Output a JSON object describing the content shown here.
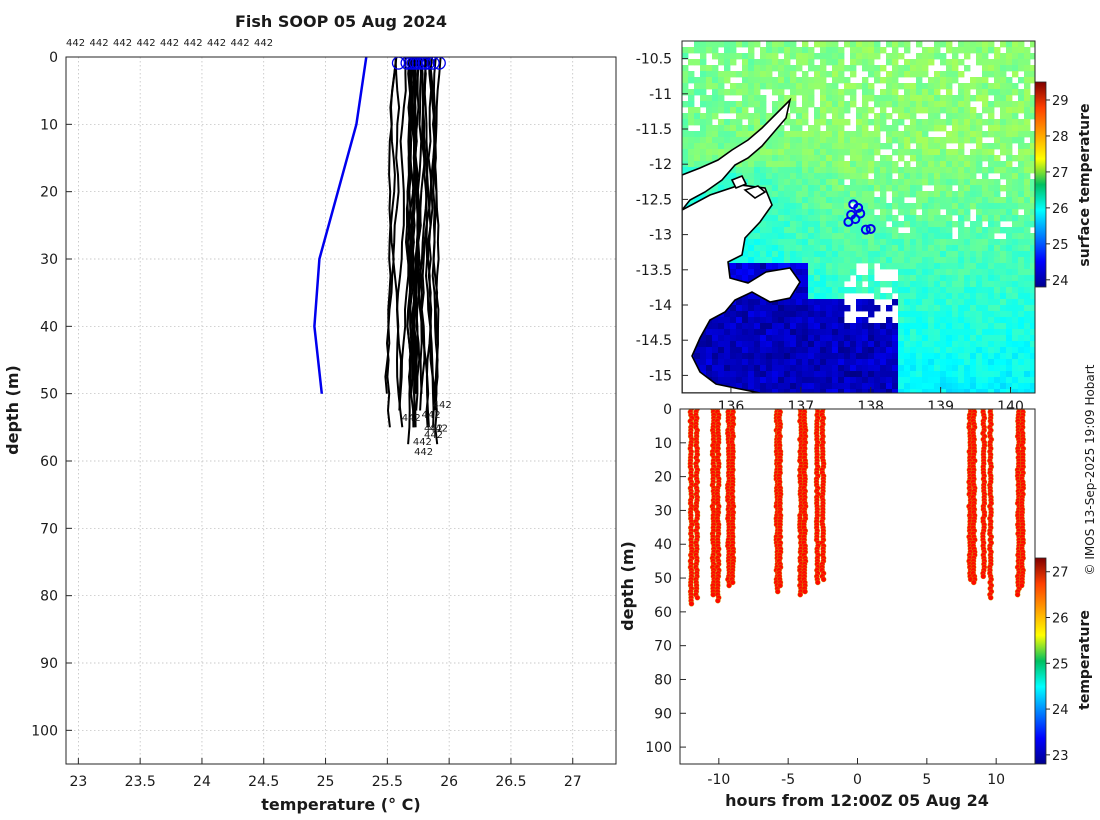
{
  "figure": {
    "title": "Fish SOOP 05 Aug 2024",
    "credit": "© IMOS 13-Sep-2025 19:09 Hobart"
  },
  "chart_data": [
    {
      "id": "profile",
      "type": "line",
      "xlabel": "temperature (° C)",
      "ylabel": "depth (m)",
      "xlim": [
        22.9,
        27.35
      ],
      "ylim": [
        105,
        0
      ],
      "xticks": [
        "23",
        "23.5",
        "24",
        "24.5",
        "25",
        "25.5",
        "26",
        "26.5",
        "27"
      ],
      "yticks": [
        "0",
        "10",
        "20",
        "30",
        "40",
        "50",
        "60",
        "70",
        "80",
        "90",
        "100"
      ],
      "grid": true,
      "top_labels": [
        "442",
        "442",
        "442",
        "442",
        "442",
        "442",
        "442",
        "442",
        "442"
      ],
      "reference_profile": {
        "name": "climatology",
        "color": "#0000ee",
        "x": [
          25.33,
          25.25,
          24.95,
          24.91,
          24.97
        ],
        "y": [
          0,
          10,
          30,
          40,
          50
        ]
      },
      "profiles": {
        "color": "#000000",
        "start_x": [
          25.59,
          25.66,
          25.69,
          25.71,
          25.73,
          25.75,
          25.78,
          25.8,
          25.83,
          25.87,
          25.92
        ],
        "end_labels": [
          {
            "x": 25.85,
            "depth": 51.5,
            "text": "442"
          },
          {
            "x": 25.6,
            "depth": 53.5,
            "text": "442"
          },
          {
            "x": 25.76,
            "depth": 53,
            "text": "442"
          },
          {
            "x": 25.78,
            "depth": 55,
            "text": "442"
          },
          {
            "x": 25.82,
            "depth": 55,
            "text": "442"
          },
          {
            "x": 25.78,
            "depth": 56,
            "text": "442"
          },
          {
            "x": 25.69,
            "depth": 57,
            "text": "442"
          },
          {
            "x": 25.7,
            "depth": 58.5,
            "text": "442"
          }
        ]
      }
    },
    {
      "id": "map",
      "type": "heatmap",
      "title": "",
      "ylabel": "",
      "xticks": [
        "136",
        "137",
        "138",
        "139",
        "140"
      ],
      "yticks": [
        "-10.5",
        "-11",
        "-11.5",
        "-12",
        "-12.5",
        "-13",
        "-13.5",
        "-14",
        "-14.5",
        "-15"
      ],
      "xlim": [
        135.3,
        140.35
      ],
      "ylim": [
        -15.25,
        -10.25
      ],
      "colorbar": {
        "label": "surface temperature",
        "ticks": [
          "24",
          "25",
          "26",
          "27",
          "28",
          "29"
        ],
        "range": [
          23.8,
          29.5
        ]
      },
      "drop_locations": [
        {
          "lon": 137.75,
          "lat": -12.57
        },
        {
          "lon": 137.82,
          "lat": -12.62
        },
        {
          "lon": 137.72,
          "lat": -12.72
        },
        {
          "lon": 137.85,
          "lat": -12.7
        },
        {
          "lon": 137.68,
          "lat": -12.82
        },
        {
          "lon": 137.78,
          "lat": -12.78
        },
        {
          "lon": 137.93,
          "lat": -12.93
        },
        {
          "lon": 138.0,
          "lat": -12.92
        }
      ]
    },
    {
      "id": "time-depth",
      "type": "scatter",
      "xlabel": "hours from 12:00Z 05 Aug 24",
      "ylabel": "depth (m)",
      "xticks": [
        "-10",
        "-5",
        "0",
        "5",
        "10"
      ],
      "yticks": [
        "0",
        "10",
        "20",
        "30",
        "40",
        "50",
        "60",
        "70",
        "80",
        "90",
        "100"
      ],
      "xlim": [
        -12.8,
        12.8
      ],
      "ylim": [
        105,
        0
      ],
      "colorbar": {
        "label": "temperature",
        "ticks": [
          "23",
          "24",
          "25",
          "26",
          "27"
        ],
        "range": [
          22.8,
          27.3
        ]
      },
      "casts": [
        {
          "hour": -12.0,
          "max_depth": 58
        },
        {
          "hour": -11.6,
          "max_depth": 56
        },
        {
          "hour": -10.4,
          "max_depth": 55
        },
        {
          "hour": -10.05,
          "max_depth": 57
        },
        {
          "hour": -9.3,
          "max_depth": 53
        },
        {
          "hour": -9.0,
          "max_depth": 52
        },
        {
          "hour": -5.8,
          "max_depth": 54
        },
        {
          "hour": -5.6,
          "max_depth": 53
        },
        {
          "hour": -4.1,
          "max_depth": 55
        },
        {
          "hour": -3.8,
          "max_depth": 54
        },
        {
          "hour": -2.9,
          "max_depth": 52
        },
        {
          "hour": -2.5,
          "max_depth": 51
        },
        {
          "hour": 8.1,
          "max_depth": 51
        },
        {
          "hour": 8.4,
          "max_depth": 52
        },
        {
          "hour": 9.1,
          "max_depth": 50
        },
        {
          "hour": 9.6,
          "max_depth": 56
        },
        {
          "hour": 11.6,
          "max_depth": 55
        },
        {
          "hour": 11.9,
          "max_depth": 53
        }
      ],
      "point_temperature": 26.7
    }
  ]
}
